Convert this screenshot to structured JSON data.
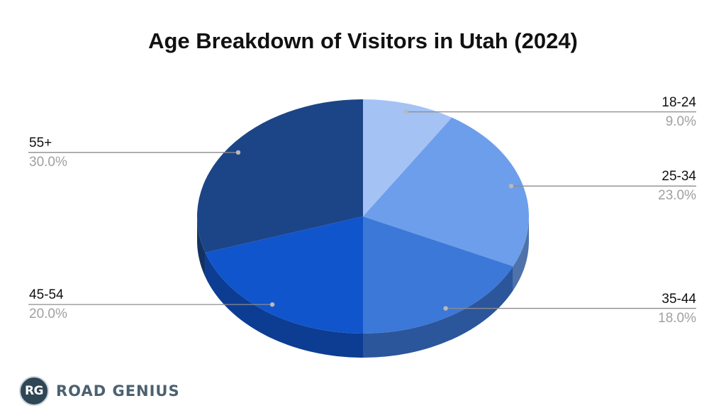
{
  "chart_data": {
    "type": "pie",
    "title": "Age Breakdown of Visitors in Utah (2024)",
    "slices": [
      {
        "label": "18-24",
        "value": 9.0,
        "display": "9.0%",
        "color": "#a4c2f4"
      },
      {
        "label": "25-34",
        "value": 23.0,
        "display": "23.0%",
        "color": "#6d9eeb"
      },
      {
        "label": "35-44",
        "value": 18.0,
        "display": "18.0%",
        "color": "#3c78d8"
      },
      {
        "label": "45-54",
        "value": 20.0,
        "display": "20.0%",
        "color": "#1155cc"
      },
      {
        "label": "55+",
        "value": 30.0,
        "display": "30.0%",
        "color": "#1c4587"
      }
    ],
    "style": "3d",
    "legend": "callouts"
  },
  "brand": {
    "badge": "RG",
    "name": "ROAD GENIUS"
  }
}
